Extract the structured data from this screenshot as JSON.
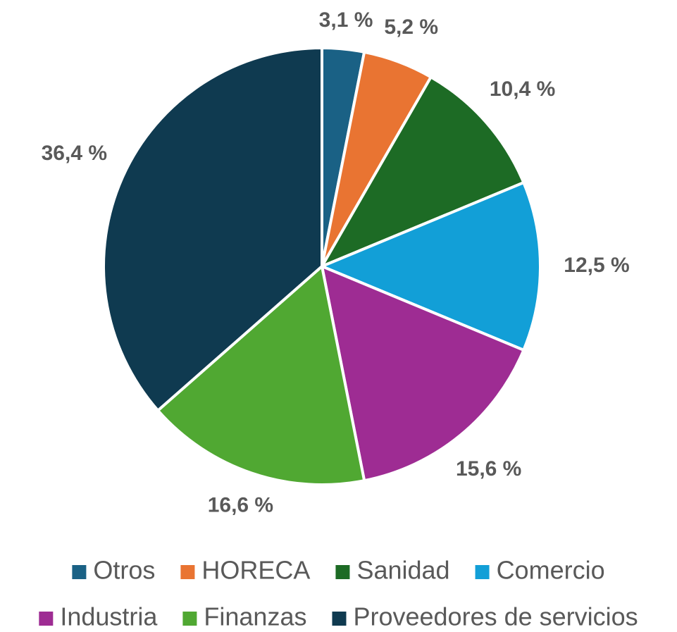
{
  "chart_data": {
    "type": "pie",
    "categories": [
      "Otros",
      "HORECA",
      "Sanidad",
      "Comercio",
      "Industria",
      "Finanzas",
      "Proveedores de servicios"
    ],
    "values": [
      3.1,
      5.2,
      10.4,
      12.5,
      15.6,
      16.6,
      36.4
    ],
    "value_labels": [
      "3,1 %",
      "5,2 %",
      "10,4 %",
      "12,5 %",
      "15,6 %",
      "16,6 %",
      "36,4 %"
    ],
    "colors": [
      "#1a6185",
      "#e97432",
      "#1d6b25",
      "#129fd7",
      "#9e2c93",
      "#50a832",
      "#0f3a50"
    ],
    "legend": "bottom"
  }
}
